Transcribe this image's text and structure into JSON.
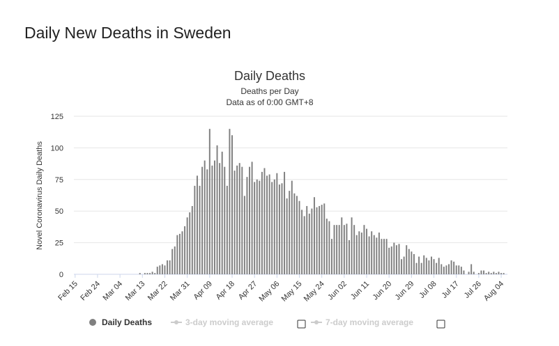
{
  "page": {
    "title": "Daily New Deaths in Sweden"
  },
  "chart_data": {
    "type": "bar",
    "title": "Daily Deaths",
    "subtitle_1": "Deaths per Day",
    "subtitle_2": "Data as of 0:00 GMT+8",
    "ylabel": "Novel Coronavirus Daily Deaths",
    "xlabel": "",
    "ylim": [
      0,
      125
    ],
    "y_ticks": [
      0,
      25,
      50,
      75,
      100,
      125
    ],
    "x_tick_labels": [
      "Feb 15",
      "Feb 24",
      "Mar 04",
      "Mar 13",
      "Mar 22",
      "Mar 31",
      "Apr 09",
      "Apr 18",
      "Apr 27",
      "May 06",
      "May 15",
      "May 24",
      "Jun 02",
      "Jun 11",
      "Jun 20",
      "Jun 29",
      "Jul 08",
      "Jul 17",
      "Jul 26",
      "Aug 04"
    ],
    "grid": true,
    "bar_color": "#808080",
    "series": [
      {
        "name": "Daily Deaths",
        "start_date": "Feb 15",
        "values": [
          0,
          0,
          0,
          0,
          0,
          0,
          0,
          0,
          0,
          0,
          0,
          0,
          0,
          0,
          0,
          0,
          0,
          0,
          0,
          0,
          0,
          0,
          0,
          0,
          0,
          0,
          1,
          0,
          1,
          1,
          1,
          2,
          1,
          6,
          7,
          8,
          7,
          11,
          11,
          20,
          22,
          31,
          32,
          34,
          38,
          45,
          49,
          54,
          70,
          78,
          70,
          85,
          90,
          83,
          115,
          86,
          90,
          102,
          88,
          97,
          85,
          70,
          115,
          110,
          82,
          86,
          88,
          85,
          62,
          77,
          85,
          89,
          73,
          75,
          74,
          81,
          84,
          78,
          79,
          73,
          75,
          80,
          71,
          72,
          81,
          60,
          66,
          74,
          64,
          62,
          58,
          51,
          46,
          54,
          48,
          52,
          61,
          53,
          54,
          55,
          56,
          44,
          42,
          28,
          39,
          39,
          39,
          45,
          39,
          40,
          27,
          45,
          39,
          31,
          34,
          33,
          39,
          36,
          30,
          34,
          31,
          29,
          33,
          28,
          28,
          28,
          21,
          22,
          25,
          23,
          24,
          12,
          14,
          23,
          20,
          18,
          16,
          9,
          14,
          9,
          15,
          13,
          11,
          14,
          12,
          9,
          13,
          8,
          6,
          7,
          8,
          11,
          10,
          7,
          7,
          6,
          3,
          0,
          2,
          8,
          2,
          0,
          1,
          3,
          3,
          1,
          2,
          1,
          2,
          1,
          2,
          1,
          1
        ]
      }
    ]
  },
  "legend": [
    {
      "label": "Daily Deaths",
      "color": "#808080",
      "checkbox": false
    },
    {
      "label": "3-day moving average",
      "color": "#cccccc",
      "checkbox": true
    },
    {
      "label": "7-day moving average",
      "color": "#cccccc",
      "checkbox": true
    }
  ]
}
